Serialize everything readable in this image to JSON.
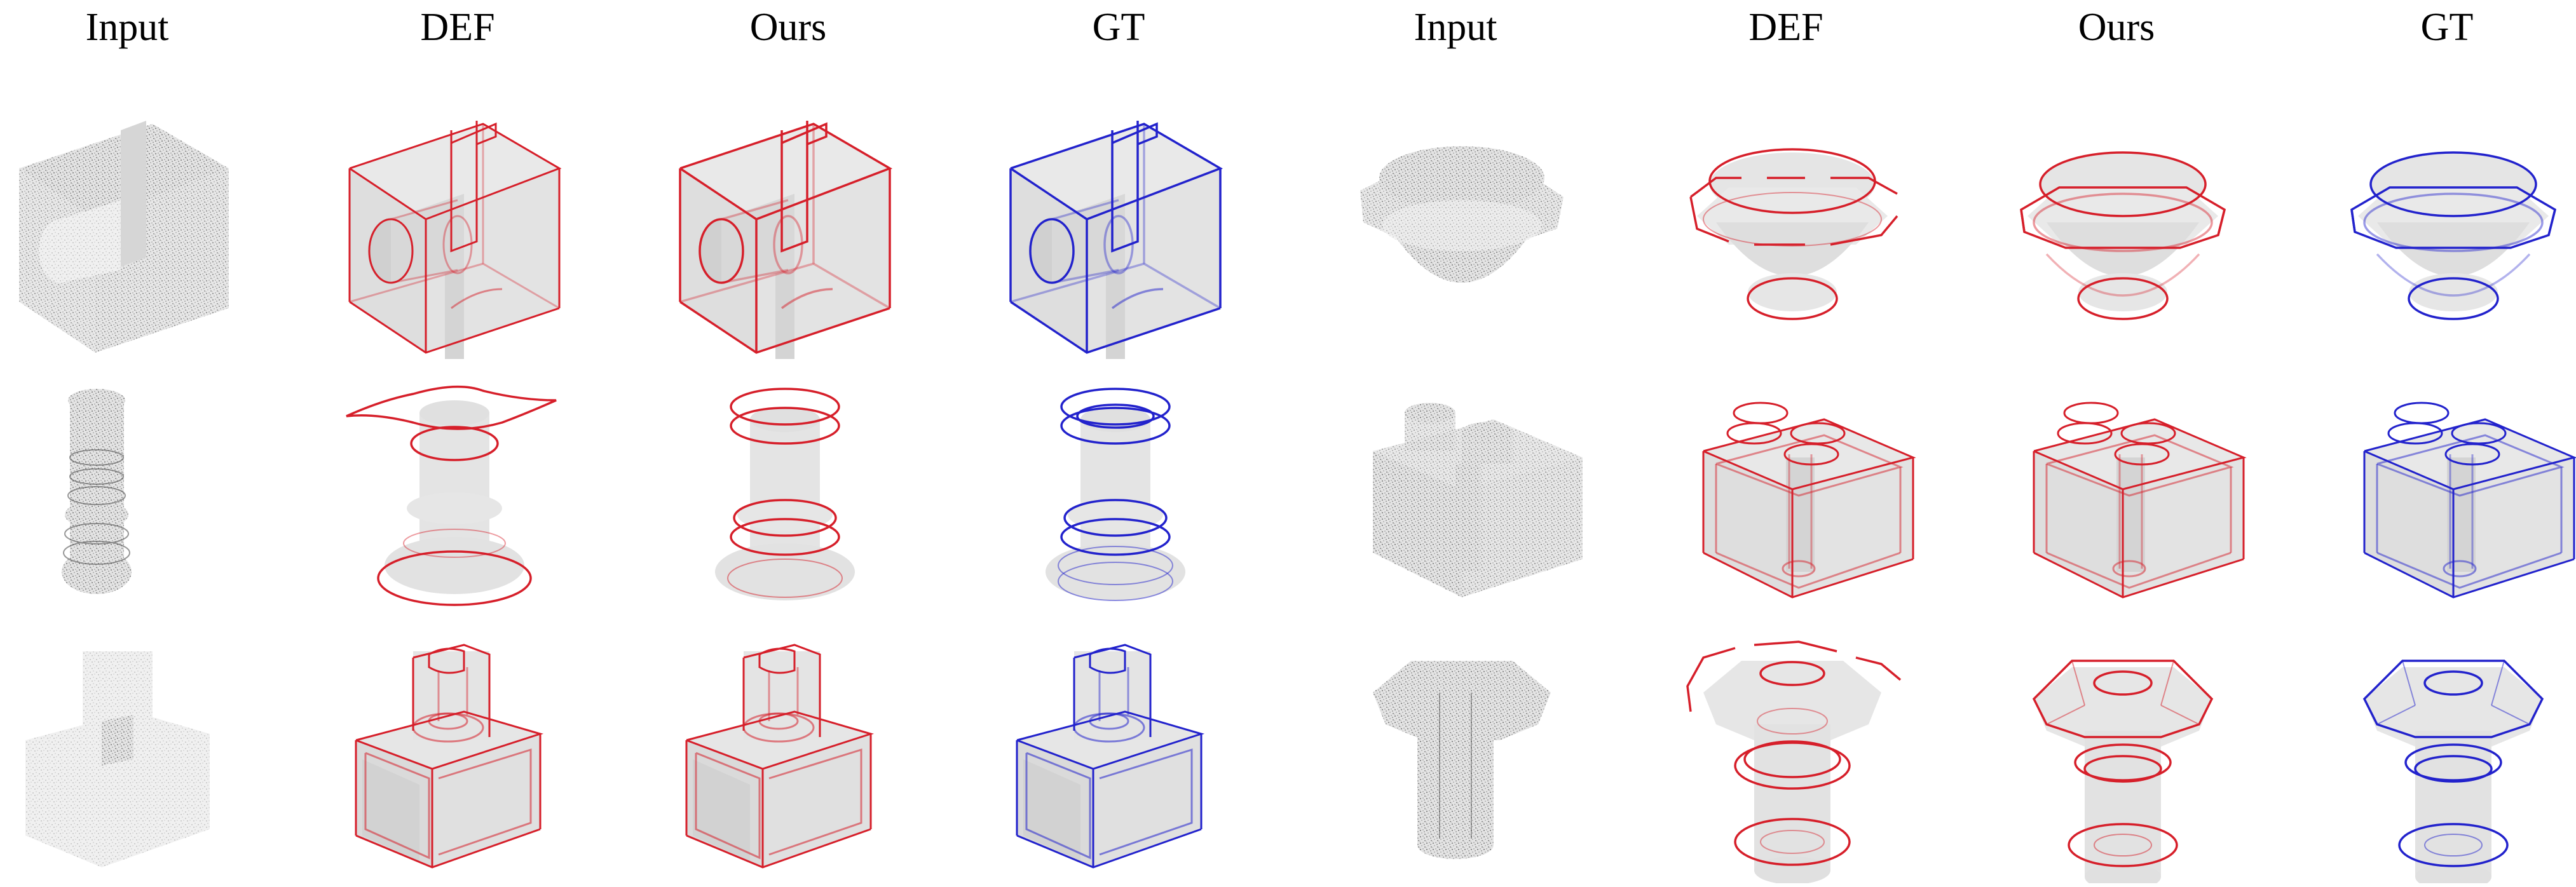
{
  "headers": [
    "Input",
    "DEF",
    "Ours",
    "GT",
    "Input",
    "DEF",
    "Ours",
    "GT"
  ],
  "colors": {
    "def": "#d61f2a",
    "ours": "#d61f2a",
    "gt": "#2222cc",
    "surface": "#e6e6e6",
    "points": "#7a7a7a"
  }
}
